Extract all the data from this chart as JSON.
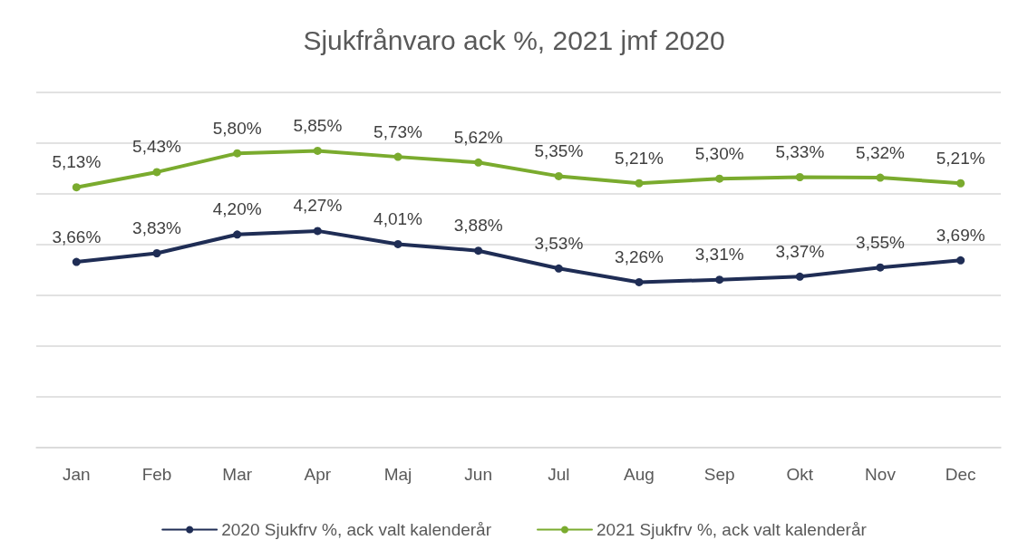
{
  "chart_data": {
    "type": "line",
    "title": "Sjukfrånvaro ack %, 2021 jmf 2020",
    "categories": [
      "Jan",
      "Feb",
      "Mar",
      "Apr",
      "Maj",
      "Jun",
      "Jul",
      "Aug",
      "Sep",
      "Okt",
      "Nov",
      "Dec"
    ],
    "series": [
      {
        "name": "2020 Sjukfrv %, ack valt kalenderår",
        "color": "#1f2d55",
        "values": [
          3.66,
          3.83,
          4.2,
          4.27,
          4.01,
          3.88,
          3.53,
          3.26,
          3.31,
          3.37,
          3.55,
          3.69
        ],
        "value_labels": [
          "3,66%",
          "3,83%",
          "4,20%",
          "4,27%",
          "4,01%",
          "3,88%",
          "3,53%",
          "3,26%",
          "3,31%",
          "3,37%",
          "3,55%",
          "3,69%"
        ]
      },
      {
        "name": "2021 Sjukfrv %, ack valt kalenderår",
        "color": "#7aab2e",
        "values": [
          5.13,
          5.43,
          5.8,
          5.85,
          5.73,
          5.62,
          5.35,
          5.21,
          5.3,
          5.33,
          5.32,
          5.21
        ],
        "value_labels": [
          "5,13%",
          "5,43%",
          "5,80%",
          "5,85%",
          "5,73%",
          "5,62%",
          "5,35%",
          "5,21%",
          "5,30%",
          "5,33%",
          "5,32%",
          "5,21%"
        ]
      }
    ],
    "ylim": [
      0,
      7
    ],
    "yticks": [
      {
        "value": 0,
        "label": null
      },
      {
        "value": 1,
        "label": null
      },
      {
        "value": 2,
        "label": null
      },
      {
        "value": 3,
        "label": null
      },
      {
        "value": 4,
        "label": null
      },
      {
        "value": 5,
        "label": null
      },
      {
        "value": 6,
        "label": null
      },
      {
        "value": 7,
        "label": null
      }
    ],
    "tick_labels": "x",
    "grid": "y",
    "legend": "bottom",
    "marker": "circle",
    "line_style": "solid"
  }
}
